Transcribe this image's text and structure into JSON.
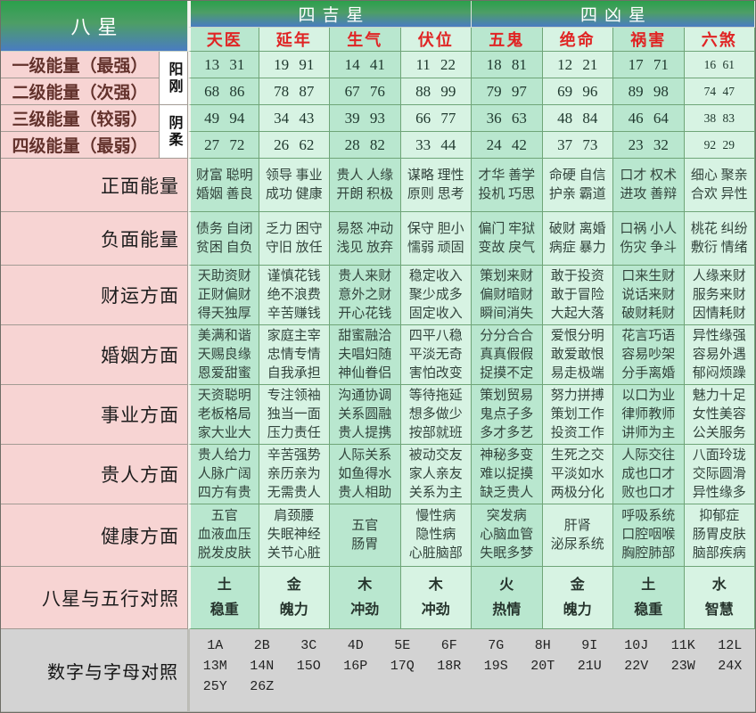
{
  "header": {
    "eight_stars": "八星",
    "lucky_group": "四吉星",
    "unlucky_group": "四凶星",
    "columns": [
      "天医",
      "延年",
      "生气",
      "伏位",
      "五鬼",
      "绝命",
      "祸害",
      "六煞"
    ]
  },
  "yin_yang": {
    "yang": "阳刚",
    "yin": "阴柔"
  },
  "energy_rows": [
    {
      "label": "一级能量（最强）",
      "values": [
        "13 31",
        "19 91",
        "14 41",
        "11 22",
        "18 81",
        "12 21",
        "17 71",
        "16 61"
      ]
    },
    {
      "label": "二级能量（次强）",
      "values": [
        "68 86",
        "78 87",
        "67 76",
        "88 99",
        "79 97",
        "69 96",
        "89 98",
        "74 47"
      ]
    },
    {
      "label": "三级能量（较弱）",
      "values": [
        "49 94",
        "34 43",
        "39 93",
        "66 77",
        "36 63",
        "48 84",
        "46 64",
        "38 83"
      ]
    },
    {
      "label": "四级能量（最弱）",
      "values": [
        "27 72",
        "26 62",
        "28 82",
        "33 44",
        "24 42",
        "37 73",
        "23 32",
        "92 29"
      ]
    }
  ],
  "aspect_rows": [
    {
      "label": "正面能量",
      "cells": [
        [
          "财富 聪明",
          "婚姻 善良"
        ],
        [
          "领导 事业",
          "成功 健康"
        ],
        [
          "贵人 人缘",
          "开朗 积极"
        ],
        [
          "谋略 理性",
          "原则 思考"
        ],
        [
          "才华 善学",
          "投机 巧思"
        ],
        [
          "命硬 自信",
          "护亲 霸道"
        ],
        [
          "口才 权术",
          "进攻 善辩"
        ],
        [
          "细心 聚亲",
          "合欢 异性"
        ]
      ]
    },
    {
      "label": "负面能量",
      "cells": [
        [
          "债务 自闭",
          "贫困 自负"
        ],
        [
          "乏力 困守",
          "守旧 放任"
        ],
        [
          "易怒 冲动",
          "浅见 放弃"
        ],
        [
          "保守 胆小",
          "懦弱 顽固"
        ],
        [
          "偏门 牢狱",
          "变故 戾气"
        ],
        [
          "破财 离婚",
          "病症 暴力"
        ],
        [
          "口祸 小人",
          "伤灾 争斗"
        ],
        [
          "桃花 纠纷",
          "敷衍 情绪"
        ]
      ]
    },
    {
      "label": "财运方面",
      "cells": [
        [
          "天助资财",
          "正财偏财",
          "得天独厚"
        ],
        [
          "谨慎花钱",
          "绝不浪费",
          "辛苦赚钱"
        ],
        [
          "贵人来财",
          "意外之财",
          "开心花钱"
        ],
        [
          "稳定收入",
          "聚少成多",
          "固定收入"
        ],
        [
          "策划来财",
          "偏财暗财",
          "瞬间消失"
        ],
        [
          "敢于投资",
          "敢于冒险",
          "大起大落"
        ],
        [
          "口来生财",
          "说话来财",
          "破财耗财"
        ],
        [
          "人缘来财",
          "服务来财",
          "因情耗财"
        ]
      ]
    },
    {
      "label": "婚姻方面",
      "cells": [
        [
          "美满和谐",
          "天赐良缘",
          "恩爱甜蜜"
        ],
        [
          "家庭主宰",
          "忠情专情",
          "自我承担"
        ],
        [
          "甜蜜融洽",
          "夫唱妇随",
          "神仙眷侣"
        ],
        [
          "四平八稳",
          "平淡无奇",
          "害怕改变"
        ],
        [
          "分分合合",
          "真真假假",
          "捉摸不定"
        ],
        [
          "爱恨分明",
          "敢爱敢恨",
          "易走极端"
        ],
        [
          "花言巧语",
          "容易吵架",
          "分手离婚"
        ],
        [
          "异性缘强",
          "容易外遇",
          "郁闷烦躁"
        ]
      ]
    },
    {
      "label": "事业方面",
      "cells": [
        [
          "天资聪明",
          "老板格局",
          "家大业大"
        ],
        [
          "专注领袖",
          "独当一面",
          "压力责任"
        ],
        [
          "沟通协调",
          "关系圆融",
          "贵人提携"
        ],
        [
          "等待拖延",
          "想多做少",
          "按部就班"
        ],
        [
          "策划贸易",
          "鬼点子多",
          "多才多艺"
        ],
        [
          "努力拼搏",
          "策划工作",
          "投资工作"
        ],
        [
          "以口为业",
          "律师教师",
          "讲师为主"
        ],
        [
          "魅力十足",
          "女性美容",
          "公关服务"
        ]
      ]
    },
    {
      "label": "贵人方面",
      "cells": [
        [
          "贵人给力",
          "人脉广阔",
          "四方有贵"
        ],
        [
          "辛苦强势",
          "亲历亲为",
          "无需贵人"
        ],
        [
          "人际关系",
          "如鱼得水",
          "贵人相助"
        ],
        [
          "被动交友",
          "家人亲友",
          "关系为主"
        ],
        [
          "神秘多变",
          "难以捉摸",
          "缺乏贵人"
        ],
        [
          "生死之交",
          "平淡如水",
          "两极分化"
        ],
        [
          "人际交往",
          "成也口才",
          "败也口才"
        ],
        [
          "八面玲珑",
          "交际圆滑",
          "异性缘多"
        ]
      ]
    },
    {
      "label": "健康方面",
      "cells": [
        [
          "五官",
          "血液血压",
          "脱发皮肤"
        ],
        [
          "肩颈腰",
          "失眠神经",
          "关节心脏"
        ],
        [
          "五官",
          "肠胃"
        ],
        [
          "慢性病",
          "隐性病",
          "心脏脑部"
        ],
        [
          "突发病",
          "心脑血管",
          "失眠多梦"
        ],
        [
          "肝肾",
          "泌尿系统"
        ],
        [
          "呼吸系统",
          "口腔咽喉",
          "胸腔肺部"
        ],
        [
          "抑郁症",
          "肠胃皮肤",
          "脑部疾病"
        ]
      ]
    },
    {
      "label": "八星与五行对照",
      "cells": [
        [
          "土",
          "稳重"
        ],
        [
          "金",
          "魄力"
        ],
        [
          "木",
          "冲劲"
        ],
        [
          "木",
          "冲劲"
        ],
        [
          "火",
          "热情"
        ],
        [
          "金",
          "魄力"
        ],
        [
          "土",
          "稳重"
        ],
        [
          "水",
          "智慧"
        ]
      ]
    }
  ],
  "number_letter_row": {
    "label": "数字与字母对照",
    "lines": [
      [
        "1A",
        "2B",
        "3C",
        "4D",
        "5E",
        "6F",
        "7G",
        "8H",
        "9I",
        "10J",
        "11K",
        "12L"
      ],
      [
        "13M",
        "14N",
        "15O",
        "16P",
        "17Q",
        "18R",
        "19S",
        "20T",
        "21U",
        "22V",
        "23W",
        "24X"
      ],
      [
        "25Y",
        "26Z"
      ]
    ]
  },
  "colors": {
    "header_gradient_top": "#2ba04b",
    "header_gradient_bottom": "#4a7cc2",
    "star_name_red": "#e02424",
    "label_pink": "#f7d4d3",
    "cell_mint_dark": "#b9e7cf",
    "cell_mint_light": "#d7f3e3",
    "bottom_gray": "#d3d3d3"
  }
}
